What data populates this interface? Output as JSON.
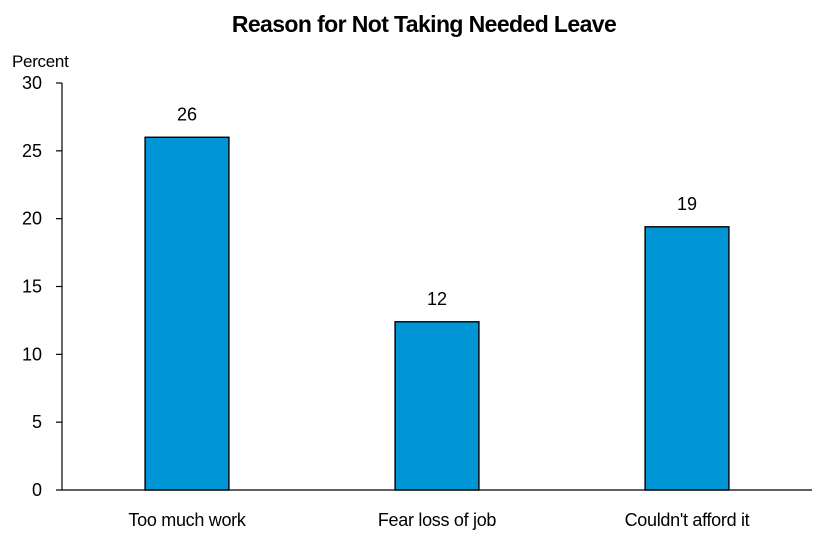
{
  "chart_data": {
    "type": "bar",
    "title": "Reason for Not Taking Needed Leave",
    "ylabel": "Percent",
    "xlabel": "",
    "categories": [
      "Too much work",
      "Fear loss of job",
      "Couldn't afford it"
    ],
    "values": [
      26,
      12.4,
      19.4
    ],
    "data_labels": [
      "26",
      "12",
      "19"
    ],
    "ylim": [
      0,
      30
    ],
    "yticks": [
      0,
      5,
      10,
      15,
      20,
      25,
      30
    ],
    "grid": false,
    "legend": "none",
    "bar_color": "#0096D6"
  }
}
